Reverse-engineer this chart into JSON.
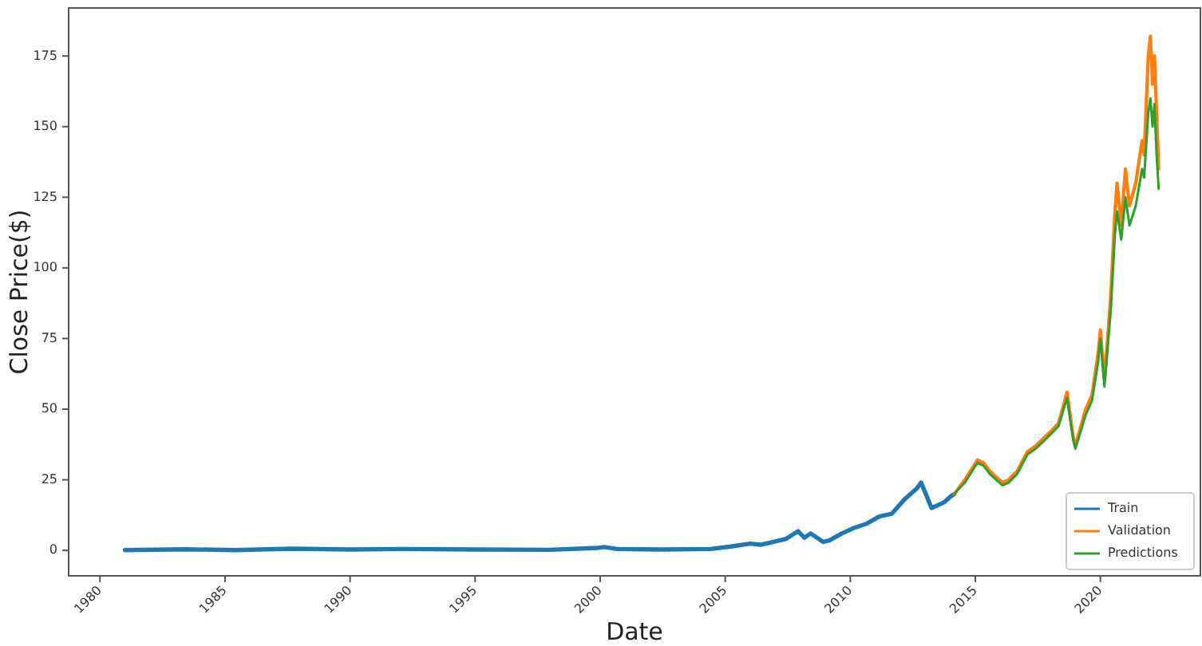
{
  "chart_data": {
    "type": "line",
    "xlabel": "Date",
    "ylabel": "Close Price($)",
    "xlim": [
      "1978-10",
      "2024-01"
    ],
    "ylim": [
      -9,
      192
    ],
    "xticks": [
      "1980",
      "1985",
      "1990",
      "1995",
      "2000",
      "2005",
      "2010",
      "2015",
      "2020"
    ],
    "yticks": [
      0,
      25,
      50,
      75,
      100,
      125,
      150,
      175
    ],
    "legend": "bottom right",
    "grid": false,
    "series": [
      {
        "name": "Train",
        "color": "#1f77b4",
        "x": [
          "1981-01",
          "1983-06",
          "1985-06",
          "1987-09",
          "1990-01",
          "1992-01",
          "1995-01",
          "1998-01",
          "1999-12",
          "2000-03",
          "2000-09",
          "2002-06",
          "2004-06",
          "2005-03",
          "2006-01",
          "2006-06",
          "2007-06",
          "2007-12",
          "2008-03",
          "2008-06",
          "2008-12",
          "2009-03",
          "2009-09",
          "2010-03",
          "2010-09",
          "2011-03",
          "2011-09",
          "2012-03",
          "2012-06",
          "2012-09",
          "2012-11",
          "2013-04",
          "2013-07",
          "2013-10",
          "2014-01",
          "2014-03"
        ],
        "values": [
          0.1,
          0.4,
          0.1,
          0.6,
          0.3,
          0.5,
          0.3,
          0.2,
          0.9,
          1.2,
          0.5,
          0.3,
          0.5,
          1.3,
          2.4,
          2.0,
          4.0,
          6.8,
          4.5,
          6.0,
          3.0,
          3.5,
          6.0,
          8.0,
          9.5,
          12,
          13,
          18,
          20,
          22,
          24,
          15,
          16,
          17,
          19,
          20
        ]
      },
      {
        "name": "Validation",
        "color": "#ff7f0e",
        "x": [
          "2014-03",
          "2014-08",
          "2015-02",
          "2015-05",
          "2015-08",
          "2016-02",
          "2016-05",
          "2016-09",
          "2017-02",
          "2017-06",
          "2018-01",
          "2018-05",
          "2018-09",
          "2018-12",
          "2019-01",
          "2019-06",
          "2019-09",
          "2019-12",
          "2020-01",
          "2020-03",
          "2020-06",
          "2020-08",
          "2020-09",
          "2020-11",
          "2021-01",
          "2021-03",
          "2021-06",
          "2021-09",
          "2021-10",
          "2021-12",
          "2022-01",
          "2022-02",
          "2022-03",
          "2022-04",
          "2022-05"
        ],
        "values": [
          20,
          25,
          32,
          31,
          28,
          24,
          25,
          28,
          35,
          37,
          42,
          45,
          56,
          40,
          37,
          50,
          55,
          70,
          78,
          60,
          90,
          120,
          130,
          115,
          135,
          122,
          130,
          145,
          140,
          175,
          182,
          165,
          175,
          155,
          135
        ]
      },
      {
        "name": "Predictions",
        "color": "#2ca02c",
        "x": [
          "2014-03",
          "2014-08",
          "2015-02",
          "2015-05",
          "2015-08",
          "2016-02",
          "2016-05",
          "2016-09",
          "2017-02",
          "2017-06",
          "2018-01",
          "2018-05",
          "2018-09",
          "2018-12",
          "2019-01",
          "2019-06",
          "2019-09",
          "2019-12",
          "2020-01",
          "2020-03",
          "2020-06",
          "2020-08",
          "2020-09",
          "2020-11",
          "2021-01",
          "2021-03",
          "2021-06",
          "2021-09",
          "2021-10",
          "2021-12",
          "2022-01",
          "2022-02",
          "2022-03",
          "2022-04",
          "2022-05"
        ],
        "values": [
          20,
          24,
          31,
          30,
          27,
          23,
          24,
          27,
          34,
          36,
          41,
          44,
          54,
          39,
          36,
          48,
          53,
          67,
          75,
          58,
          85,
          112,
          120,
          110,
          125,
          115,
          122,
          135,
          132,
          155,
          160,
          150,
          158,
          140,
          128
        ]
      }
    ]
  }
}
